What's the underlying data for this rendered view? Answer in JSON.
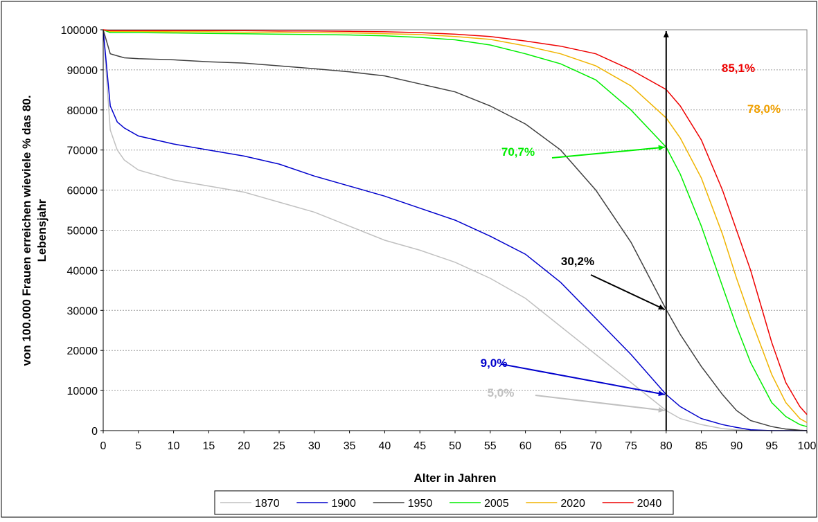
{
  "chart_data": {
    "type": "line",
    "title": "",
    "xlabel": "Alter in Jahren",
    "ylabel_line1": "von 100.000 Frauen erreichen wieviele % das 80.",
    "ylabel_line2": "Lebensjahr",
    "xlim": [
      0,
      100
    ],
    "ylim": [
      0,
      100000
    ],
    "x_ticks": [
      0,
      5,
      10,
      15,
      20,
      25,
      30,
      35,
      40,
      45,
      50,
      55,
      60,
      65,
      70,
      75,
      80,
      85,
      90,
      95,
      100
    ],
    "y_ticks": [
      0,
      10000,
      20000,
      30000,
      40000,
      50000,
      60000,
      70000,
      80000,
      90000,
      100000
    ],
    "grid": "horizontal dashed",
    "legend_position": "bottom",
    "x": [
      0,
      1,
      2,
      3,
      5,
      10,
      15,
      20,
      25,
      30,
      35,
      40,
      45,
      50,
      55,
      60,
      65,
      70,
      75,
      80,
      82,
      85,
      88,
      90,
      92,
      95,
      97,
      99,
      100
    ],
    "series": [
      {
        "name": "1870",
        "color": "#c0c0c0",
        "values": [
          100000,
          75000,
          70000,
          67500,
          65000,
          62500,
          61000,
          59500,
          57000,
          54500,
          51000,
          47500,
          45000,
          42000,
          38000,
          33000,
          26000,
          19000,
          12000,
          5000,
          3000,
          1500,
          500,
          200,
          100,
          0,
          0,
          0,
          0
        ]
      },
      {
        "name": "1900",
        "color": "#0000cc",
        "values": [
          100000,
          81000,
          77000,
          75500,
          73500,
          71500,
          70000,
          68500,
          66500,
          63500,
          61000,
          58500,
          55500,
          52500,
          48500,
          44000,
          37000,
          28000,
          19000,
          9000,
          6000,
          3000,
          1500,
          800,
          200,
          0,
          0,
          0,
          0
        ]
      },
      {
        "name": "1950",
        "color": "#404040",
        "values": [
          100000,
          94000,
          93500,
          93000,
          92800,
          92500,
          92000,
          91700,
          91000,
          90300,
          89500,
          88500,
          86500,
          84500,
          81000,
          76500,
          70000,
          60000,
          47000,
          30200,
          24000,
          16000,
          9000,
          5000,
          2500,
          1000,
          400,
          100,
          0
        ]
      },
      {
        "name": "2005",
        "color": "#00ee00",
        "values": [
          100000,
          99300,
          99300,
          99300,
          99300,
          99200,
          99100,
          99000,
          98900,
          98800,
          98700,
          98500,
          98100,
          97500,
          96200,
          94000,
          91500,
          87500,
          80000,
          70700,
          64000,
          51000,
          36000,
          26000,
          17000,
          7000,
          3500,
          1500,
          1000
        ]
      },
      {
        "name": "2020",
        "color": "#f0b400",
        "values": [
          100000,
          99600,
          99600,
          99600,
          99600,
          99500,
          99500,
          99400,
          99400,
          99300,
          99200,
          99000,
          98800,
          98300,
          97600,
          96000,
          94000,
          91000,
          86000,
          78000,
          73000,
          63000,
          49000,
          38000,
          28000,
          14000,
          7000,
          3000,
          2000
        ]
      },
      {
        "name": "2040",
        "color": "#ee0000",
        "values": [
          100000,
          99800,
          99800,
          99800,
          99800,
          99800,
          99800,
          99800,
          99700,
          99700,
          99600,
          99500,
          99300,
          98900,
          98300,
          97200,
          95900,
          94000,
          90000,
          85100,
          81000,
          72500,
          60000,
          50000,
          40000,
          22000,
          12000,
          6000,
          4000
        ]
      }
    ],
    "annotations": [
      {
        "text": "85,1%",
        "color": "#ee0000"
      },
      {
        "text": "78,0%",
        "color": "#f0a000"
      },
      {
        "text": "70,7%",
        "color": "#00ee00",
        "target": [
          80,
          70700
        ]
      },
      {
        "text": "30,2%",
        "color": "#000000",
        "target": [
          80,
          30200
        ]
      },
      {
        "text": "9,0%",
        "color": "#0000cc",
        "target": [
          80,
          9000
        ]
      },
      {
        "text": "5,0%",
        "color": "#c0c0c0",
        "target": [
          80,
          5000
        ]
      }
    ]
  }
}
